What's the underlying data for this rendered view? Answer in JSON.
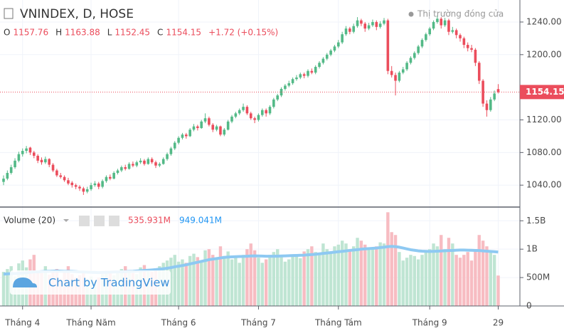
{
  "chart_data": {
    "type": "candlestick",
    "title": "VNINDEX, D, HOSE",
    "status": "Thị trường đóng cửa",
    "ohlc_labels": [
      "O",
      "H",
      "L",
      "C"
    ],
    "change": "+1.72 (+0.15%)",
    "volume_title": "Volume (20)",
    "last_volume_label": "535.931M",
    "last_ma_label": "949.041M",
    "watermark": "Chart by TradingView",
    "colors": {
      "up": "#53b987",
      "down": "#eb4d5c",
      "volume_up": "#bfe5d3",
      "volume_down": "#f7bcc2",
      "ma": "#8ec9f2"
    },
    "ylim": [
      1014,
      1267
    ],
    "yticks": [
      {
        "value": 1040,
        "label": "1040.00"
      },
      {
        "value": 1080,
        "label": "1080.00"
      },
      {
        "value": 1120,
        "label": "1120.00"
      },
      {
        "value": 1200,
        "label": "1200.00"
      },
      {
        "value": 1240,
        "label": "1240.00"
      }
    ],
    "volume_ylim": [
      0,
      1729
    ],
    "volume_yticks": [
      0,
      {
        "value": 500,
        "label": "500M"
      },
      {
        "value": 1000,
        "label": "1B"
      },
      {
        "value": 1500,
        "label": "1.5B"
      }
    ],
    "xticks": [
      {
        "value": 5,
        "label": "Tháng 4"
      },
      {
        "value": 23,
        "label": "Tháng Năm"
      },
      {
        "value": 46,
        "label": "Tháng 6"
      },
      {
        "value": 67,
        "label": "Tháng 7"
      },
      {
        "value": 88,
        "label": "Tháng Tám"
      },
      {
        "value": 112,
        "label": "Tháng 9"
      },
      {
        "value": 130,
        "label": "29"
      }
    ],
    "candles": [
      [
        1044,
        1052,
        1040,
        1048
      ],
      [
        1048,
        1058,
        1046,
        1055
      ],
      [
        1055,
        1065,
        1053,
        1062
      ],
      [
        1062,
        1073,
        1060,
        1070
      ],
      [
        1070,
        1081,
        1068,
        1078
      ],
      [
        1078,
        1085,
        1075,
        1082
      ],
      [
        1082,
        1088,
        1079,
        1085
      ],
      [
        1086,
        1087,
        1077,
        1080
      ],
      [
        1080,
        1082,
        1073,
        1076
      ],
      [
        1076,
        1078,
        1067,
        1070
      ],
      [
        1071,
        1074,
        1065,
        1068
      ],
      [
        1068,
        1075,
        1066,
        1072
      ],
      [
        1072,
        1073,
        1062,
        1065
      ],
      [
        1065,
        1067,
        1056,
        1058
      ],
      [
        1058,
        1060,
        1050,
        1052
      ],
      [
        1052,
        1055,
        1048,
        1050
      ],
      [
        1050,
        1052,
        1044,
        1046
      ],
      [
        1046,
        1049,
        1040,
        1042
      ],
      [
        1043,
        1045,
        1037,
        1040
      ],
      [
        1040,
        1042,
        1035,
        1038
      ],
      [
        1038,
        1040,
        1033,
        1036
      ],
      [
        1036,
        1038,
        1028,
        1032
      ],
      [
        1032,
        1038,
        1030,
        1035
      ],
      [
        1035,
        1043,
        1033,
        1040
      ],
      [
        1040,
        1045,
        1038,
        1042
      ],
      [
        1042,
        1044,
        1035,
        1038
      ],
      [
        1038,
        1047,
        1036,
        1045
      ],
      [
        1045,
        1052,
        1043,
        1050
      ],
      [
        1050,
        1053,
        1046,
        1048
      ],
      [
        1048,
        1057,
        1047,
        1055
      ],
      [
        1055,
        1060,
        1053,
        1058
      ],
      [
        1058,
        1064,
        1056,
        1062
      ],
      [
        1062,
        1065,
        1058,
        1060
      ],
      [
        1060,
        1068,
        1059,
        1066
      ],
      [
        1066,
        1069,
        1062,
        1064
      ],
      [
        1064,
        1070,
        1062,
        1068
      ],
      [
        1068,
        1073,
        1066,
        1070
      ],
      [
        1070,
        1072,
        1064,
        1066
      ],
      [
        1066,
        1074,
        1065,
        1072
      ],
      [
        1072,
        1074,
        1066,
        1068
      ],
      [
        1068,
        1070,
        1061,
        1064
      ],
      [
        1064,
        1068,
        1062,
        1066
      ],
      [
        1066,
        1074,
        1065,
        1072
      ],
      [
        1072,
        1080,
        1070,
        1078
      ],
      [
        1078,
        1087,
        1076,
        1085
      ],
      [
        1085,
        1094,
        1083,
        1092
      ],
      [
        1092,
        1100,
        1090,
        1098
      ],
      [
        1098,
        1104,
        1096,
        1102
      ],
      [
        1102,
        1104,
        1097,
        1100
      ],
      [
        1100,
        1110,
        1099,
        1108
      ],
      [
        1108,
        1115,
        1106,
        1112
      ],
      [
        1112,
        1114,
        1107,
        1110
      ],
      [
        1110,
        1120,
        1109,
        1118
      ],
      [
        1118,
        1128,
        1116,
        1122
      ],
      [
        1122,
        1124,
        1112,
        1114
      ],
      [
        1114,
        1116,
        1105,
        1108
      ],
      [
        1108,
        1114,
        1106,
        1112
      ],
      [
        1112,
        1113,
        1100,
        1102
      ],
      [
        1102,
        1110,
        1100,
        1108
      ],
      [
        1108,
        1120,
        1107,
        1118
      ],
      [
        1118,
        1126,
        1116,
        1124
      ],
      [
        1124,
        1130,
        1122,
        1128
      ],
      [
        1128,
        1134,
        1126,
        1132
      ],
      [
        1132,
        1140,
        1130,
        1136
      ],
      [
        1136,
        1138,
        1126,
        1128
      ],
      [
        1128,
        1130,
        1120,
        1122
      ],
      [
        1122,
        1124,
        1116,
        1120
      ],
      [
        1120,
        1128,
        1118,
        1126
      ],
      [
        1126,
        1134,
        1124,
        1132
      ],
      [
        1132,
        1134,
        1124,
        1128
      ],
      [
        1128,
        1138,
        1126,
        1136
      ],
      [
        1136,
        1147,
        1134,
        1145
      ],
      [
        1145,
        1152,
        1143,
        1150
      ],
      [
        1150,
        1160,
        1148,
        1158
      ],
      [
        1158,
        1164,
        1156,
        1162
      ],
      [
        1162,
        1168,
        1160,
        1165
      ],
      [
        1165,
        1172,
        1163,
        1170
      ],
      [
        1170,
        1175,
        1168,
        1172
      ],
      [
        1172,
        1178,
        1170,
        1176
      ],
      [
        1176,
        1178,
        1171,
        1174
      ],
      [
        1174,
        1182,
        1172,
        1180
      ],
      [
        1180,
        1183,
        1176,
        1178
      ],
      [
        1178,
        1187,
        1176,
        1185
      ],
      [
        1185,
        1192,
        1183,
        1190
      ],
      [
        1190,
        1197,
        1188,
        1195
      ],
      [
        1195,
        1202,
        1193,
        1200
      ],
      [
        1200,
        1207,
        1198,
        1205
      ],
      [
        1205,
        1212,
        1203,
        1210
      ],
      [
        1210,
        1218,
        1208,
        1215
      ],
      [
        1215,
        1228,
        1213,
        1225
      ],
      [
        1225,
        1235,
        1223,
        1232
      ],
      [
        1232,
        1234,
        1225,
        1228
      ],
      [
        1228,
        1238,
        1226,
        1235
      ],
      [
        1235,
        1246,
        1233,
        1242
      ],
      [
        1242,
        1244,
        1235,
        1238
      ],
      [
        1238,
        1240,
        1228,
        1232
      ],
      [
        1232,
        1239,
        1230,
        1236
      ],
      [
        1236,
        1243,
        1234,
        1240
      ],
      [
        1240,
        1242,
        1230,
        1234
      ],
      [
        1234,
        1241,
        1232,
        1238
      ],
      [
        1238,
        1245,
        1236,
        1242
      ],
      [
        1242,
        1244,
        1176,
        1180
      ],
      [
        1180,
        1186,
        1172,
        1175
      ],
      [
        1175,
        1178,
        1150,
        1168
      ],
      [
        1168,
        1180,
        1166,
        1178
      ],
      [
        1178,
        1185,
        1176,
        1182
      ],
      [
        1182,
        1192,
        1180,
        1190
      ],
      [
        1190,
        1198,
        1188,
        1196
      ],
      [
        1196,
        1204,
        1194,
        1202
      ],
      [
        1202,
        1212,
        1200,
        1210
      ],
      [
        1210,
        1220,
        1208,
        1218
      ],
      [
        1218,
        1227,
        1216,
        1225
      ],
      [
        1225,
        1234,
        1223,
        1232
      ],
      [
        1232,
        1242,
        1230,
        1240
      ],
      [
        1240,
        1248,
        1238,
        1244
      ],
      [
        1244,
        1246,
        1232,
        1236
      ],
      [
        1236,
        1245,
        1234,
        1242
      ],
      [
        1242,
        1244,
        1224,
        1228
      ],
      [
        1228,
        1234,
        1226,
        1230
      ],
      [
        1230,
        1232,
        1220,
        1224
      ],
      [
        1224,
        1226,
        1216,
        1220
      ],
      [
        1220,
        1222,
        1208,
        1212
      ],
      [
        1212,
        1215,
        1204,
        1208
      ],
      [
        1208,
        1212,
        1203,
        1206
      ],
      [
        1206,
        1208,
        1186,
        1190
      ],
      [
        1190,
        1192,
        1164,
        1168
      ],
      [
        1168,
        1170,
        1136,
        1140
      ],
      [
        1140,
        1144,
        1124,
        1132
      ],
      [
        1132,
        1148,
        1130,
        1145
      ],
      [
        1145,
        1156,
        1143,
        1152.43
      ],
      [
        1157.76,
        1163.88,
        1152.45,
        1154.15
      ]
    ],
    "volume": [
      600,
      650,
      700,
      520,
      750,
      800,
      680,
      820,
      900,
      620,
      580,
      700,
      550,
      600,
      650,
      480,
      620,
      700,
      560,
      500,
      540,
      600,
      480,
      520,
      450,
      500,
      560,
      620,
      580,
      540,
      600,
      650,
      700,
      620,
      580,
      560,
      680,
      720,
      640,
      600,
      660,
      700,
      760,
      800,
      850,
      900,
      780,
      820,
      760,
      880,
      920,
      860,
      800,
      980,
      1000,
      900,
      840,
      1050,
      880,
      960,
      820,
      880,
      760,
      900,
      1000,
      1100,
      980,
      850,
      760,
      820,
      900,
      950,
      1000,
      860,
      780,
      820,
      900,
      880,
      840,
      960,
      1000,
      1050,
      950,
      900,
      1100,
      1000,
      960,
      1050,
      1080,
      1150,
      1100,
      1000,
      1050,
      1200,
      1150,
      1080,
      1020,
      1000,
      1050,
      1120,
      1100,
      1650,
      1300,
      1250,
      950,
      800,
      850,
      900,
      880,
      820,
      900,
      950,
      1000,
      1100,
      1050,
      1250,
      1000,
      1200,
      1100,
      900,
      850,
      900,
      950,
      800,
      1000,
      1250,
      1150,
      1050,
      950,
      900,
      535.931
    ],
    "volume_ma": [
      560,
      565,
      570,
      570,
      575,
      580,
      585,
      590,
      600,
      600,
      605,
      610,
      610,
      612,
      615,
      612,
      610,
      610,
      608,
      605,
      600,
      598,
      595,
      592,
      590,
      588,
      590,
      592,
      595,
      598,
      600,
      602,
      605,
      608,
      610,
      615,
      620,
      625,
      630,
      635,
      640,
      648,
      655,
      665,
      675,
      690,
      700,
      712,
      725,
      740,
      755,
      770,
      785,
      800,
      815,
      825,
      835,
      845,
      855,
      862,
      865,
      868,
      870,
      872,
      876,
      880,
      882,
      880,
      878,
      876,
      875,
      875,
      877,
      880,
      882,
      885,
      888,
      890,
      892,
      895,
      900,
      905,
      910,
      918,
      925,
      932,
      940,
      948,
      955,
      962,
      970,
      978,
      985,
      992,
      1000,
      1005,
      1010,
      1015,
      1020,
      1028,
      1035,
      1045,
      1050,
      1045,
      1035,
      1020,
      1005,
      990,
      980,
      970,
      965,
      962,
      960,
      962,
      965,
      968,
      972,
      975,
      978,
      982,
      985,
      985,
      982,
      980,
      978,
      975,
      970,
      965,
      960,
      955,
      949.041
    ]
  }
}
